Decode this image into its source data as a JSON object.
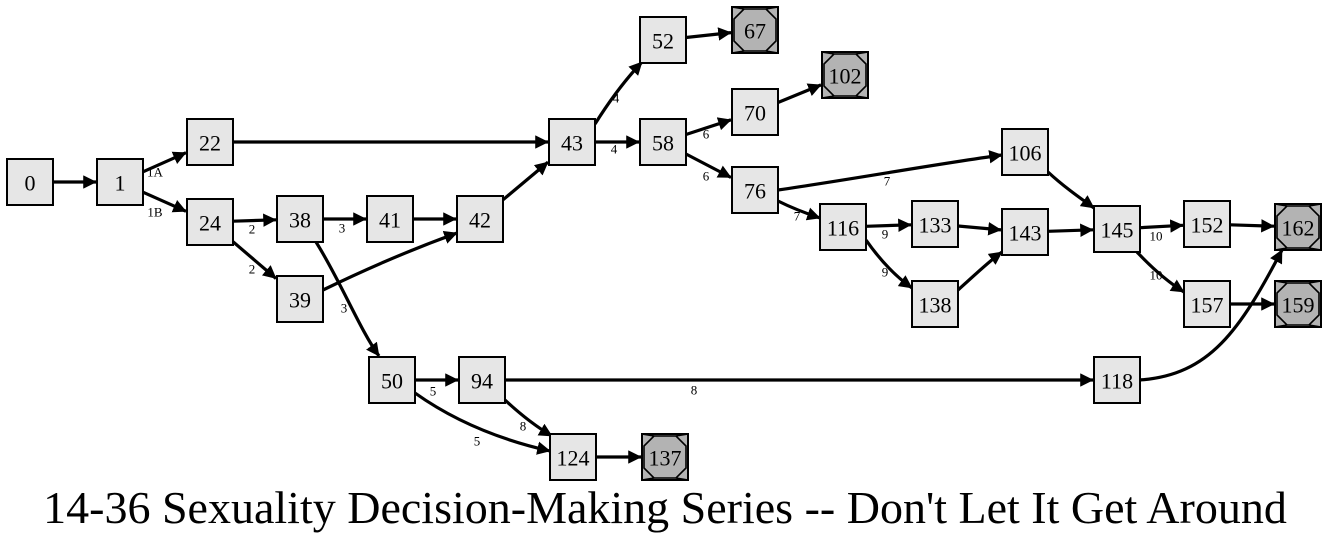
{
  "title": "14-36 Sexuality Decision-Making Series -- Don't Let It Get Around",
  "nodes": [
    {
      "id": "0",
      "type": "page"
    },
    {
      "id": "1",
      "type": "page"
    },
    {
      "id": "22",
      "type": "page"
    },
    {
      "id": "24",
      "type": "page"
    },
    {
      "id": "38",
      "type": "page"
    },
    {
      "id": "39",
      "type": "page"
    },
    {
      "id": "41",
      "type": "page"
    },
    {
      "id": "42",
      "type": "page"
    },
    {
      "id": "43",
      "type": "page"
    },
    {
      "id": "50",
      "type": "page"
    },
    {
      "id": "52",
      "type": "page"
    },
    {
      "id": "58",
      "type": "page"
    },
    {
      "id": "67",
      "type": "ending"
    },
    {
      "id": "70",
      "type": "page"
    },
    {
      "id": "76",
      "type": "page"
    },
    {
      "id": "94",
      "type": "page"
    },
    {
      "id": "102",
      "type": "ending"
    },
    {
      "id": "106",
      "type": "page"
    },
    {
      "id": "116",
      "type": "page"
    },
    {
      "id": "118",
      "type": "page"
    },
    {
      "id": "124",
      "type": "page"
    },
    {
      "id": "133",
      "type": "page"
    },
    {
      "id": "137",
      "type": "ending"
    },
    {
      "id": "138",
      "type": "page"
    },
    {
      "id": "143",
      "type": "page"
    },
    {
      "id": "145",
      "type": "page"
    },
    {
      "id": "152",
      "type": "page"
    },
    {
      "id": "157",
      "type": "page"
    },
    {
      "id": "159",
      "type": "ending"
    },
    {
      "id": "162",
      "type": "ending"
    }
  ],
  "edges": [
    {
      "from": "0",
      "to": "1",
      "label": ""
    },
    {
      "from": "1",
      "to": "22",
      "label": "1A"
    },
    {
      "from": "1",
      "to": "24",
      "label": "1B"
    },
    {
      "from": "22",
      "to": "43",
      "label": ""
    },
    {
      "from": "24",
      "to": "38",
      "label": "2"
    },
    {
      "from": "24",
      "to": "39",
      "label": "2"
    },
    {
      "from": "38",
      "to": "41",
      "label": "3"
    },
    {
      "from": "38",
      "to": "50",
      "label": "3"
    },
    {
      "from": "39",
      "to": "42",
      "label": ""
    },
    {
      "from": "41",
      "to": "42",
      "label": ""
    },
    {
      "from": "42",
      "to": "43",
      "label": ""
    },
    {
      "from": "43",
      "to": "52",
      "label": "4"
    },
    {
      "from": "43",
      "to": "58",
      "label": "4"
    },
    {
      "from": "52",
      "to": "67",
      "label": ""
    },
    {
      "from": "58",
      "to": "70",
      "label": "6"
    },
    {
      "from": "58",
      "to": "76",
      "label": "6"
    },
    {
      "from": "70",
      "to": "102",
      "label": ""
    },
    {
      "from": "76",
      "to": "106",
      "label": "7"
    },
    {
      "from": "76",
      "to": "116",
      "label": "7"
    },
    {
      "from": "106",
      "to": "145",
      "label": ""
    },
    {
      "from": "116",
      "to": "133",
      "label": "9"
    },
    {
      "from": "116",
      "to": "138",
      "label": "9"
    },
    {
      "from": "133",
      "to": "143",
      "label": ""
    },
    {
      "from": "138",
      "to": "143",
      "label": ""
    },
    {
      "from": "143",
      "to": "145",
      "label": ""
    },
    {
      "from": "145",
      "to": "152",
      "label": "10"
    },
    {
      "from": "145",
      "to": "157",
      "label": "10"
    },
    {
      "from": "152",
      "to": "162",
      "label": ""
    },
    {
      "from": "157",
      "to": "159",
      "label": ""
    },
    {
      "from": "50",
      "to": "94",
      "label": "5"
    },
    {
      "from": "50",
      "to": "124",
      "label": "5"
    },
    {
      "from": "94",
      "to": "118",
      "label": "8"
    },
    {
      "from": "94",
      "to": "124",
      "label": "8"
    },
    {
      "from": "118",
      "to": "162",
      "label": ""
    },
    {
      "from": "124",
      "to": "137",
      "label": ""
    }
  ]
}
